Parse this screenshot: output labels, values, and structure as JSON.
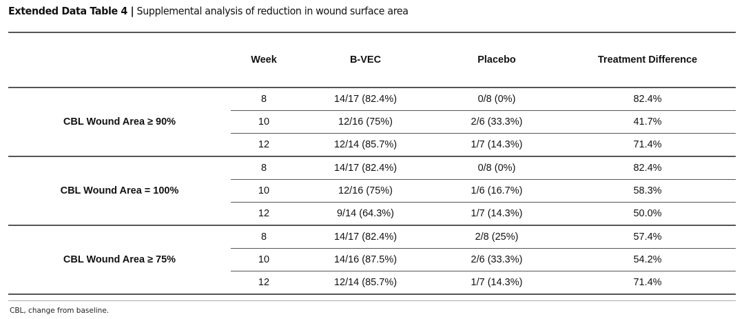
{
  "title": {
    "bold": "Extended Data Table 4 |",
    "text": "Supplemental analysis of reduction in wound surface area"
  },
  "headers": [
    "",
    "Week",
    "B-VEC",
    "Placebo",
    "Treatment Difference"
  ],
  "groups": [
    {
      "label": "CBL Wound Area ≥ 90%",
      "rows": [
        [
          "8",
          "14/17 (82.4%)",
          "0/8 (0%)",
          "82.4%"
        ],
        [
          "10",
          "12/16 (75%)",
          "2/6 (33.3%)",
          "41.7%"
        ],
        [
          "12",
          "12/14 (85.7%)",
          "1/7 (14.3%)",
          "71.4%"
        ]
      ]
    },
    {
      "label": "CBL Wound Area = 100%",
      "rows": [
        [
          "8",
          "14/17 (82.4%)",
          "0/8 (0%)",
          "82.4%"
        ],
        [
          "10",
          "12/16 (75%)",
          "1/6 (16.7%)",
          "58.3%"
        ],
        [
          "12",
          "9/14 (64.3%)",
          "1/7 (14.3%)",
          "50.0%"
        ]
      ]
    },
    {
      "label": "CBL Wound Area ≥ 75%",
      "rows": [
        [
          "8",
          "14/17 (82.4%)",
          "2/8 (25%)",
          "57.4%"
        ],
        [
          "10",
          "14/16 (87.5%)",
          "2/6 (33.3%)",
          "54.2%"
        ],
        [
          "12",
          "12/14 (85.7%)",
          "1/7 (14.3%)",
          "71.4%"
        ]
      ]
    }
  ],
  "footnote": "CBL, change from baseline."
}
